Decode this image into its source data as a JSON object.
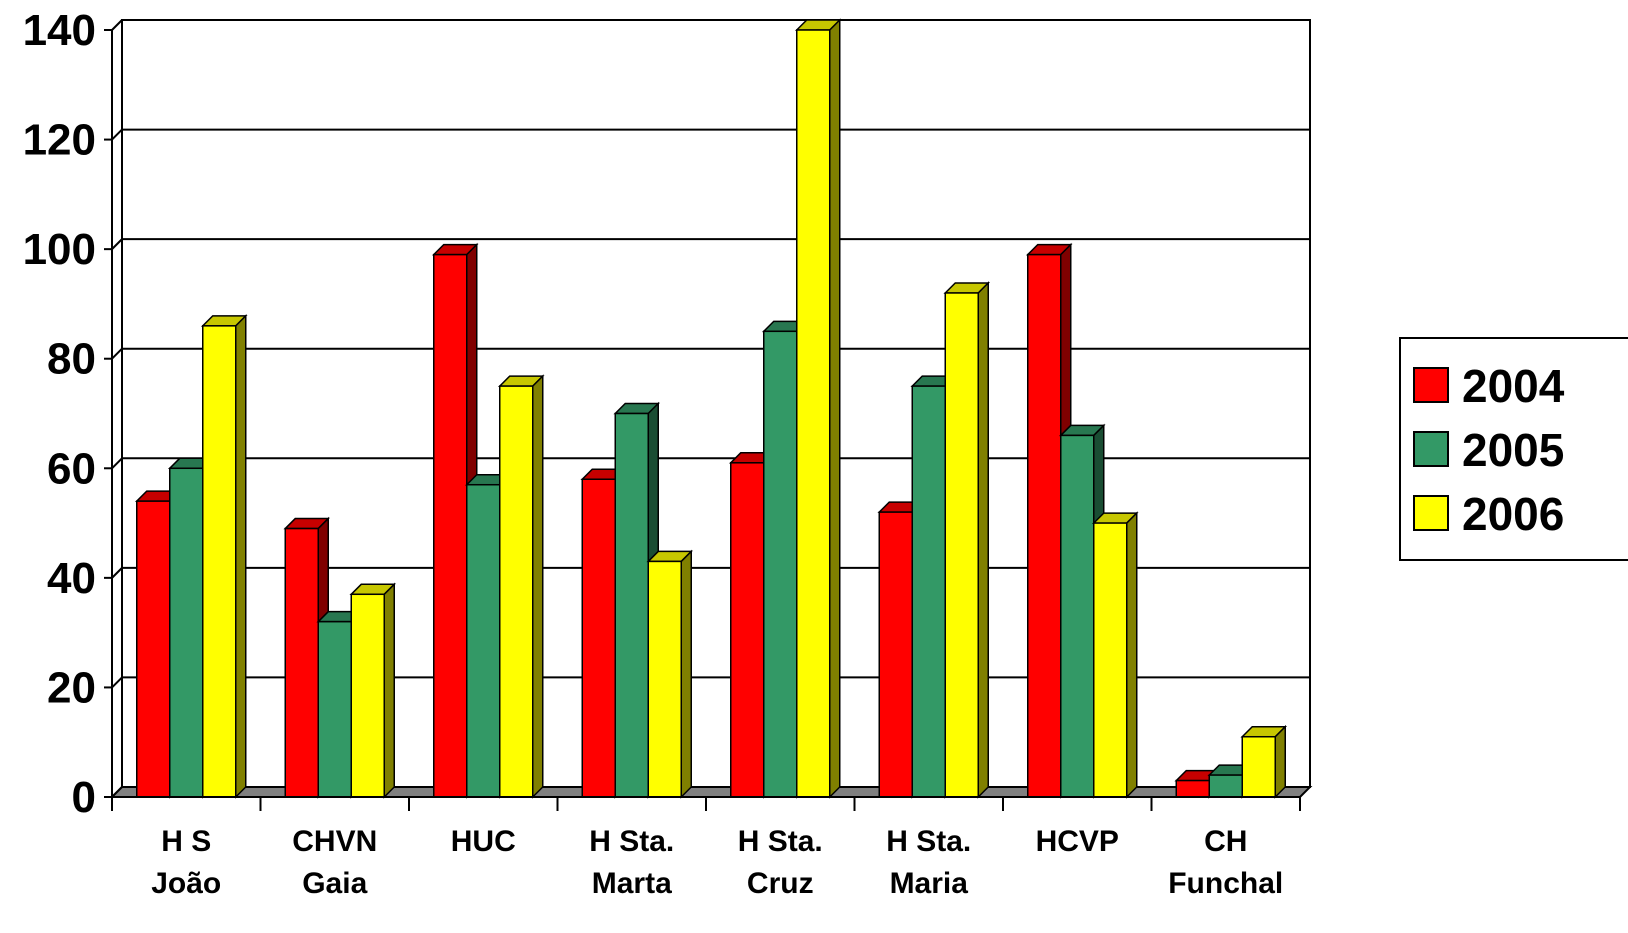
{
  "chart_data": {
    "type": "bar",
    "title": "",
    "xlabel": "",
    "ylabel": "",
    "ylim": [
      0,
      140
    ],
    "yticks": [
      0,
      20,
      40,
      60,
      80,
      100,
      120,
      140
    ],
    "categories": [
      [
        "H S",
        "João"
      ],
      [
        "CHVN",
        "Gaia"
      ],
      [
        "HUC"
      ],
      [
        "H Sta.",
        "Marta"
      ],
      [
        "H Sta.",
        "Cruz"
      ],
      [
        "H Sta.",
        "Maria"
      ],
      [
        "HCVP"
      ],
      [
        "CH",
        "Funchal"
      ]
    ],
    "series": [
      {
        "name": "2004",
        "color": "#ff0000",
        "values": [
          54,
          49,
          99,
          58,
          61,
          52,
          99,
          3
        ]
      },
      {
        "name": "2005",
        "color": "#339966",
        "values": [
          60,
          32,
          57,
          70,
          85,
          75,
          66,
          4
        ]
      },
      {
        "name": "2006",
        "color": "#ffff00",
        "values": [
          86,
          37,
          75,
          43,
          140,
          92,
          50,
          11
        ]
      }
    ],
    "grid": true,
    "legend": "right",
    "style": "3d-clustered-column"
  }
}
